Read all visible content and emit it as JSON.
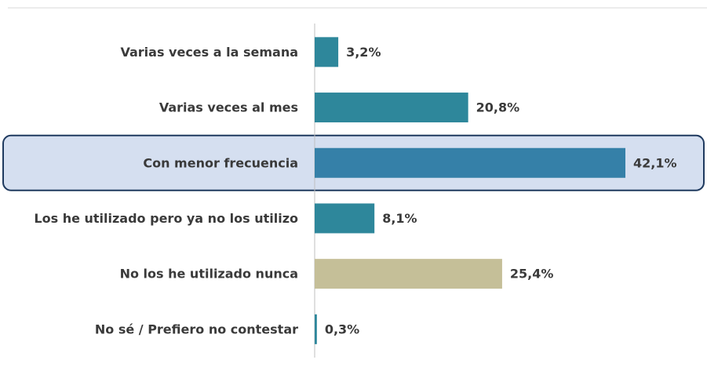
{
  "chart_data": {
    "type": "hbar",
    "categories": [
      "Varias veces a la semana",
      "Varias veces al mes",
      "Con menor frecuencia",
      "Los he utilizado pero ya no los utilizo",
      "No los he utilizado nunca",
      "No sé / Prefiero no contestar"
    ],
    "values": [
      3.2,
      20.8,
      42.1,
      8.1,
      25.4,
      0.3
    ],
    "value_labels": [
      "3,2%",
      "20,8%",
      "42,1%",
      "8,1%",
      "25,4%",
      "0,3%"
    ],
    "colors": [
      "#2e879b",
      "#2e879b",
      "#3580a8",
      "#2e879b",
      "#c5bf98",
      "#2e879b"
    ],
    "highlight": 2
  }
}
